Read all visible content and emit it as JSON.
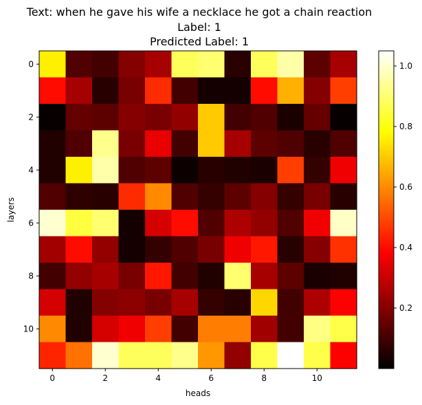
{
  "chart_data": {
    "type": "heatmap",
    "title_lines": [
      "Text: when he gave his wife a necklace he got a chain reaction",
      "Label: 1",
      "Predicted Label: 1"
    ],
    "xlabel": "heads",
    "ylabel": "layers",
    "x_ticks": [
      0,
      2,
      4,
      6,
      8,
      10
    ],
    "y_ticks": [
      0,
      2,
      4,
      6,
      8,
      10
    ],
    "colormap": "hot",
    "colorbar": {
      "range": [
        0.0,
        1.05
      ],
      "ticks": [
        0.2,
        0.4,
        0.6,
        0.8,
        1.0
      ],
      "tick_labels": [
        "0.2",
        "0.4",
        "0.6",
        "0.8",
        "1.0"
      ]
    },
    "values": [
      [
        0.76,
        0.12,
        0.1,
        0.2,
        0.25,
        0.88,
        0.9,
        0.06,
        0.88,
        0.96,
        0.14,
        0.25
      ],
      [
        0.4,
        0.25,
        0.06,
        0.18,
        0.45,
        0.1,
        0.03,
        0.03,
        0.4,
        0.66,
        0.2,
        0.48
      ],
      [
        0.01,
        0.15,
        0.14,
        0.2,
        0.18,
        0.22,
        0.7,
        0.1,
        0.12,
        0.04,
        0.15,
        0.01
      ],
      [
        0.05,
        0.12,
        0.93,
        0.18,
        0.35,
        0.1,
        0.7,
        0.25,
        0.14,
        0.12,
        0.06,
        0.12
      ],
      [
        0.05,
        0.76,
        0.96,
        0.12,
        0.14,
        0.02,
        0.06,
        0.05,
        0.04,
        0.48,
        0.08,
        0.36
      ],
      [
        0.12,
        0.07,
        0.06,
        0.45,
        0.6,
        0.12,
        0.08,
        0.14,
        0.2,
        0.08,
        0.18,
        0.06
      ],
      [
        1.0,
        0.85,
        0.9,
        0.03,
        0.32,
        0.4,
        0.12,
        0.26,
        0.22,
        0.12,
        0.36,
        0.99
      ],
      [
        0.24,
        0.4,
        0.22,
        0.03,
        0.08,
        0.12,
        0.18,
        0.36,
        0.42,
        0.06,
        0.2,
        0.46
      ],
      [
        0.1,
        0.22,
        0.25,
        0.18,
        0.42,
        0.1,
        0.05,
        0.9,
        0.25,
        0.14,
        0.04,
        0.05
      ],
      [
        0.32,
        0.05,
        0.2,
        0.21,
        0.18,
        0.25,
        0.08,
        0.06,
        0.72,
        0.1,
        0.26,
        0.38
      ],
      [
        0.6,
        0.05,
        0.32,
        0.36,
        0.48,
        0.1,
        0.58,
        0.58,
        0.24,
        0.1,
        0.92,
        0.86
      ],
      [
        0.44,
        0.56,
        1.0,
        0.88,
        0.88,
        0.93,
        0.62,
        0.22,
        0.86,
        1.05,
        0.86,
        0.38
      ]
    ]
  }
}
